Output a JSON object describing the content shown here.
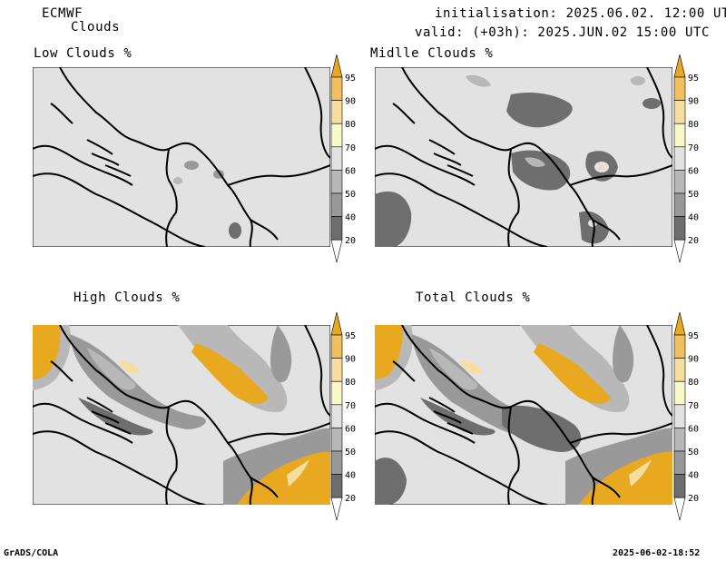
{
  "header": {
    "model": "ECMWF",
    "product": "Clouds",
    "initialisation": "initialisation: 2025.06.02. 12:00 UTC",
    "valid": "valid: (+03h): 2025.JUN.02 15:00 UTC"
  },
  "panels": [
    {
      "title": "Low Clouds %"
    },
    {
      "title": "Midlle Clouds %"
    },
    {
      "title": "High Clouds %"
    },
    {
      "title": "Total Clouds %"
    }
  ],
  "colorbar": {
    "labels": [
      "95",
      "90",
      "80",
      "70",
      "60",
      "50",
      "40",
      "20"
    ],
    "colors": [
      "#e8a820",
      "#f0c060",
      "#f5dea0",
      "#f8f8c8",
      "#e2e2e2",
      "#b8b8b8",
      "#999999",
      "#6e6e6e",
      "#4a4a4a"
    ]
  },
  "footer": {
    "left": "GrADS/COLA",
    "right": "2025-06-02-18:52"
  }
}
